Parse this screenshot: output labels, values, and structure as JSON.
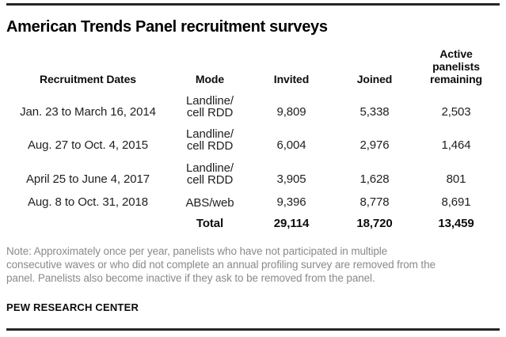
{
  "title": "American Trends Panel recruitment surveys",
  "table": {
    "headers": {
      "dates": "Recruitment Dates",
      "mode": "Mode",
      "invited": "Invited",
      "joined": "Joined",
      "active": "Active panelists remaining"
    },
    "rows": [
      {
        "dates": "Jan. 23 to March 16, 2014",
        "mode_line1": "Landline/",
        "mode_line2": "cell RDD",
        "invited": "9,809",
        "joined": "5,338",
        "active": "2,503"
      },
      {
        "dates": "Aug. 27 to Oct. 4, 2015",
        "mode_line1": "Landline/",
        "mode_line2": "cell RDD",
        "invited": "6,004",
        "joined": "2,976",
        "active": "1,464"
      },
      {
        "dates": "April 25 to June 4, 2017",
        "mode_line1": "Landline/",
        "mode_line2": "cell RDD",
        "invited": "3,905",
        "joined": "1,628",
        "active": "801"
      },
      {
        "dates": "Aug. 8 to Oct. 31, 2018",
        "mode_line1": "",
        "mode_line2": "ABS/web",
        "invited": "9,396",
        "joined": "8,778",
        "active": "8,691"
      }
    ],
    "total": {
      "dates": "",
      "label": "Total",
      "invited": "29,114",
      "joined": "18,720",
      "active": "13,459"
    }
  },
  "note": {
    "lines": [
      "Note: Approximately once per year, panelists who have not participated in multiple",
      "consecutive waves or who did not complete an annual profiling survey are removed from the",
      "panel. Panelists also become inactive if they ask to be removed from the panel."
    ]
  },
  "source": "PEW RESEARCH CENTER",
  "colors": {
    "text": "#1f1f1f",
    "title": "#000000",
    "note_gray": "#8a8a8a",
    "rule": "#262626",
    "background": "#ffffff"
  },
  "chart_data": {
    "type": "table",
    "title": "American Trends Panel recruitment surveys",
    "columns": [
      "Recruitment Dates",
      "Mode",
      "Invited",
      "Joined",
      "Active panelists remaining"
    ],
    "rows": [
      [
        "Jan. 23 to March 16, 2014",
        "Landline/cell RDD",
        9809,
        5338,
        2503
      ],
      [
        "Aug. 27 to Oct. 4, 2015",
        "Landline/cell RDD",
        6004,
        2976,
        1464
      ],
      [
        "April 25 to June 4, 2017",
        "Landline/cell RDD",
        3905,
        1628,
        801
      ],
      [
        "Aug. 8 to Oct. 31, 2018",
        "ABS/web",
        9396,
        8778,
        8691
      ]
    ],
    "total_row": [
      "",
      "Total",
      29114,
      18720,
      13459
    ],
    "note": "Note: Approximately once per year, panelists who have not participated in multiple consecutive waves or who did not complete an annual profiling survey are removed from the panel. Panelists also become inactive if they ask to be removed from the panel.",
    "source": "PEW RESEARCH CENTER",
    "layout": {
      "grid": false,
      "header_alignment": "center",
      "first_column_alignment": "left",
      "number_alignment": "center"
    }
  }
}
